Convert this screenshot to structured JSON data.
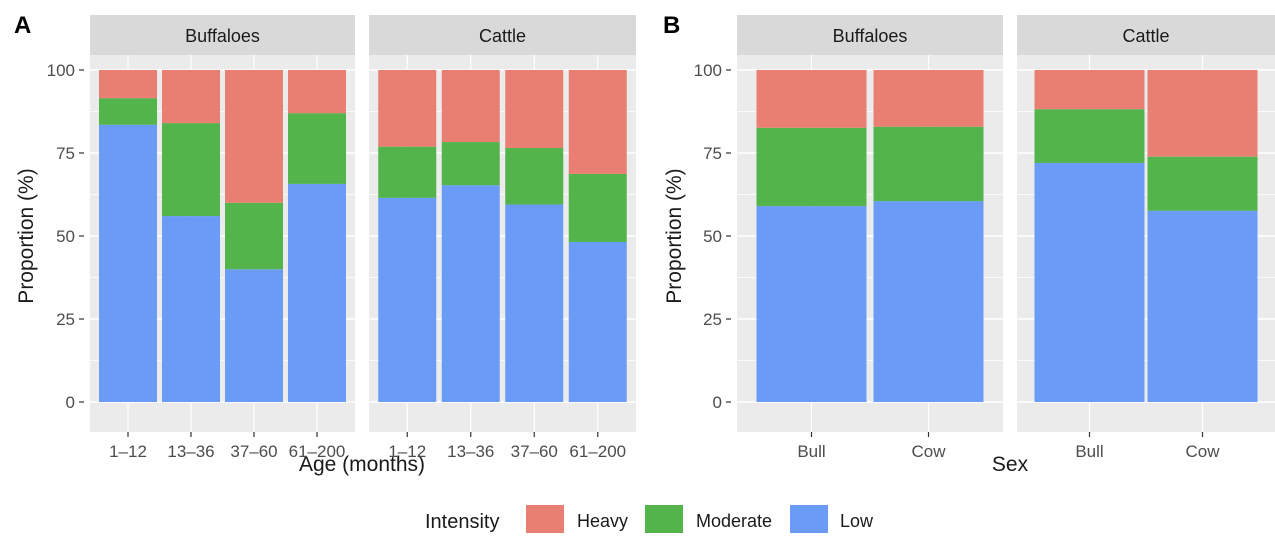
{
  "colors": {
    "heavy": "#E87F72",
    "moderate": "#52B44B",
    "low": "#6A9BF6",
    "panel_bg": "#EBEBEB",
    "strip_bg": "#D9D9D9",
    "grid": "#FFFFFF"
  },
  "legend": {
    "title": "Intensity",
    "items": [
      {
        "key": "heavy",
        "label": "Heavy"
      },
      {
        "key": "moderate",
        "label": "Moderate"
      },
      {
        "key": "low",
        "label": "Low"
      }
    ]
  },
  "chart_data": [
    {
      "type": "bar",
      "stacked": true,
      "tag": "A",
      "xlabel": "Age (months)",
      "ylabel": "Proportion (%)",
      "ylim": [
        0,
        100
      ],
      "yticks": [
        0,
        25,
        50,
        75,
        100
      ],
      "categories": [
        "1–12",
        "13–36",
        "37–60",
        "61–200"
      ],
      "facets": [
        {
          "name": "Buffaloes",
          "series": [
            {
              "name": "Low",
              "values": [
                83.5,
                56,
                40,
                65.7
              ]
            },
            {
              "name": "Moderate",
              "values": [
                8,
                28,
                20,
                21.3
              ]
            },
            {
              "name": "Heavy",
              "values": [
                8.5,
                16,
                40,
                13
              ]
            }
          ]
        },
        {
          "name": "Cattle",
          "series": [
            {
              "name": "Low",
              "values": [
                61.5,
                65.3,
                59.5,
                48.2
              ]
            },
            {
              "name": "Moderate",
              "values": [
                15.4,
                13,
                17,
                20.5
              ]
            },
            {
              "name": "Heavy",
              "values": [
                23.1,
                21.7,
                23.5,
                31.3
              ]
            }
          ]
        }
      ]
    },
    {
      "type": "bar",
      "stacked": true,
      "tag": "B",
      "xlabel": "Sex",
      "ylabel": "Proportion (%)",
      "ylim": [
        0,
        100
      ],
      "yticks": [
        0,
        25,
        50,
        75,
        100
      ],
      "categories": [
        "Bull",
        "Cow"
      ],
      "facets": [
        {
          "name": "Buffaloes",
          "series": [
            {
              "name": "Low",
              "values": [
                59,
                60.5
              ]
            },
            {
              "name": "Moderate",
              "values": [
                23.6,
                22.4
              ]
            },
            {
              "name": "Heavy",
              "values": [
                17.4,
                17.1
              ]
            }
          ]
        },
        {
          "name": "Cattle",
          "series": [
            {
              "name": "Low",
              "values": [
                72,
                57.6
              ]
            },
            {
              "name": "Moderate",
              "values": [
                16.2,
                16.3
              ]
            },
            {
              "name": "Heavy",
              "values": [
                11.8,
                26.1
              ]
            }
          ]
        }
      ]
    }
  ]
}
